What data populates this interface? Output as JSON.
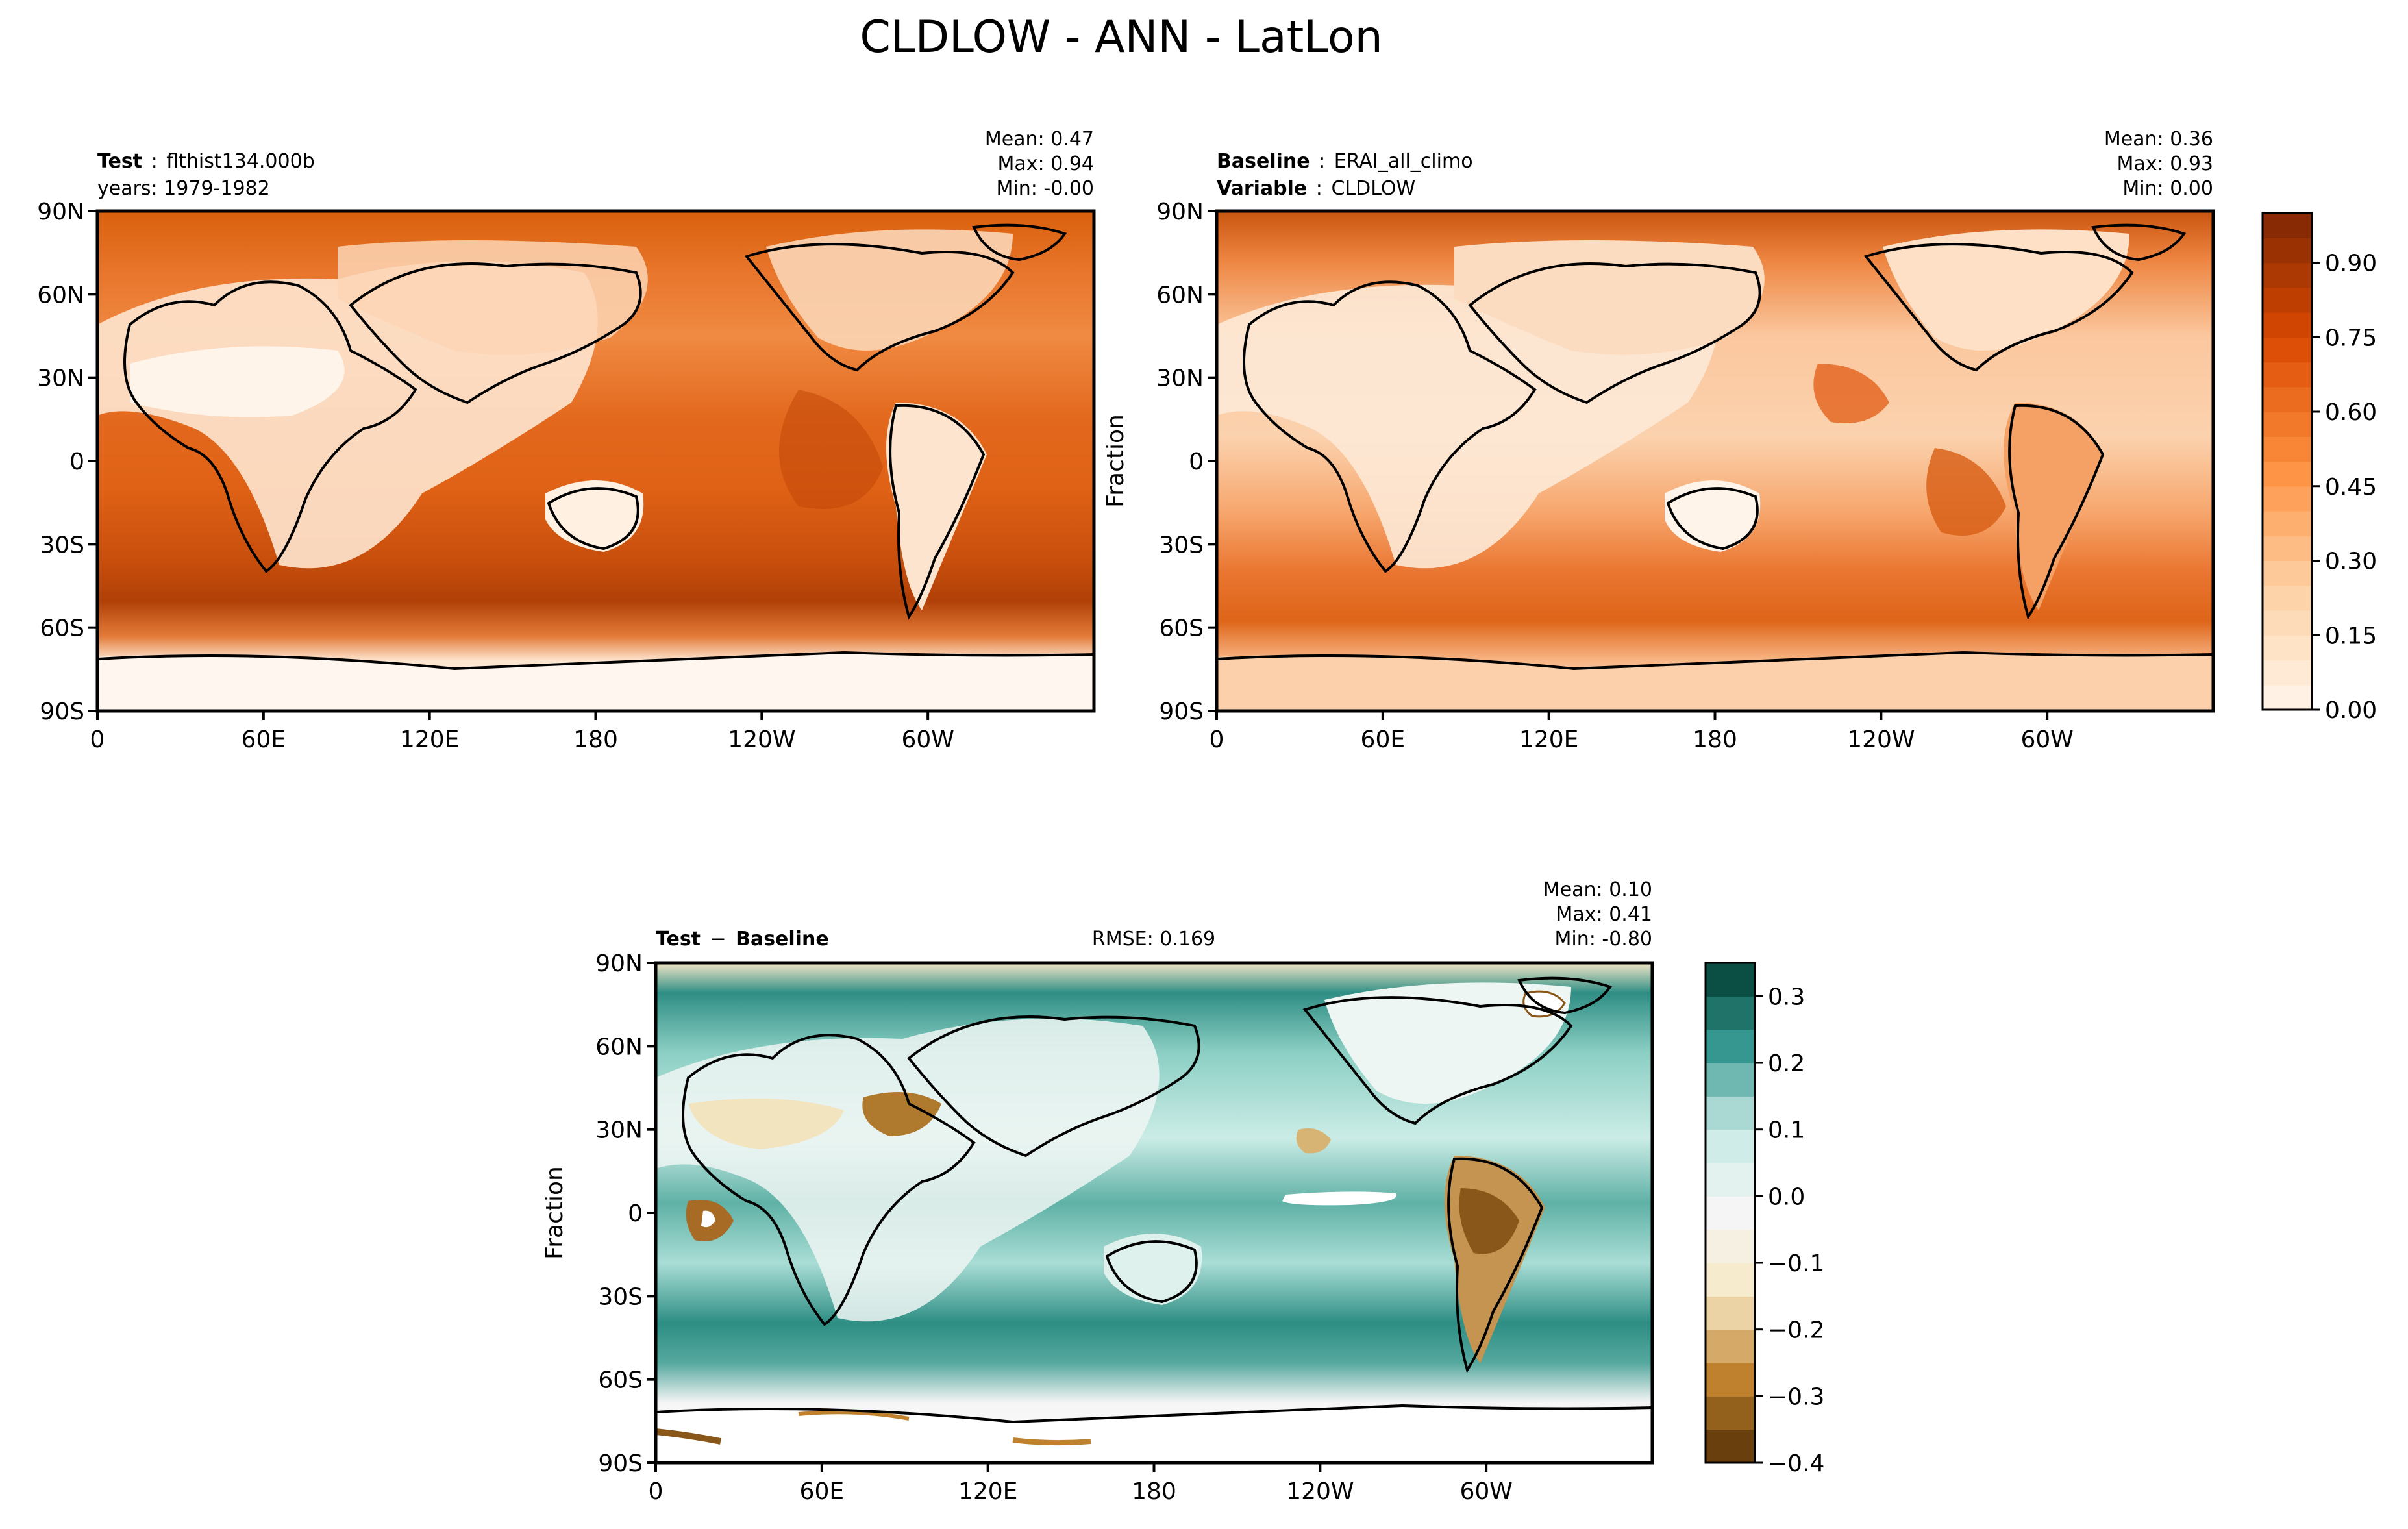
{
  "figure": {
    "title": "CLDLOW - ANN - LatLon"
  },
  "tick_labels": {
    "lat": [
      "90N",
      "60N",
      "30N",
      "0",
      "30S",
      "60S",
      "90S"
    ],
    "lon": [
      "0",
      "60E",
      "120E",
      "180",
      "120W",
      "60W"
    ]
  },
  "panels": [
    {
      "id": "test",
      "header_lines": [
        {
          "label": "Test",
          "sep": ":",
          "value": "flthist134.000b"
        },
        {
          "label": "",
          "sep": "",
          "value": "years: 1979-1982"
        }
      ],
      "stats": [
        "Mean:  0.47",
        "Max:  0.94",
        "Min: -0.00"
      ],
      "ylabel": ""
    },
    {
      "id": "baseline",
      "header_lines": [
        {
          "label": "Baseline",
          "sep": ":",
          "value": "ERAI_all_climo"
        },
        {
          "label": "Variable",
          "sep": ":",
          "value": "CLDLOW"
        }
      ],
      "stats": [
        "Mean:  0.36",
        "Max:  0.93",
        "Min:  0.00"
      ],
      "ylabel": "Fraction"
    },
    {
      "id": "diff",
      "header_lines": [
        {
          "label": "Test",
          "sep": "−",
          "value": "Baseline"
        }
      ],
      "rmse": "RMSE: 0.169",
      "stats": [
        "Mean:  0.10",
        "Max:  0.41",
        "Min: -0.80"
      ],
      "ylabel": "Fraction"
    }
  ],
  "colorbars": [
    {
      "id": "fraction",
      "cmap": "Oranges",
      "range": [
        0.0,
        1.0
      ],
      "levels": 20,
      "colors": [
        "#fff5eb",
        "#fdd0a2",
        "#fd8d3c",
        "#d94801",
        "#7f2704"
      ],
      "ticks": [
        "0.00",
        "0.15",
        "0.30",
        "0.45",
        "0.60",
        "0.75",
        "0.90"
      ]
    },
    {
      "id": "difference",
      "cmap": "BrBG",
      "range": [
        -0.4,
        0.35
      ],
      "levels": 15,
      "colors": [
        "#543005",
        "#bf812d",
        "#f6e8c3",
        "#f5f5f5",
        "#c7eae5",
        "#35978f",
        "#003c30"
      ],
      "ticks": [
        "−0.4",
        "−0.3",
        "−0.2",
        "−0.1",
        "0.0",
        "0.1",
        "0.2",
        "0.3"
      ]
    }
  ]
}
